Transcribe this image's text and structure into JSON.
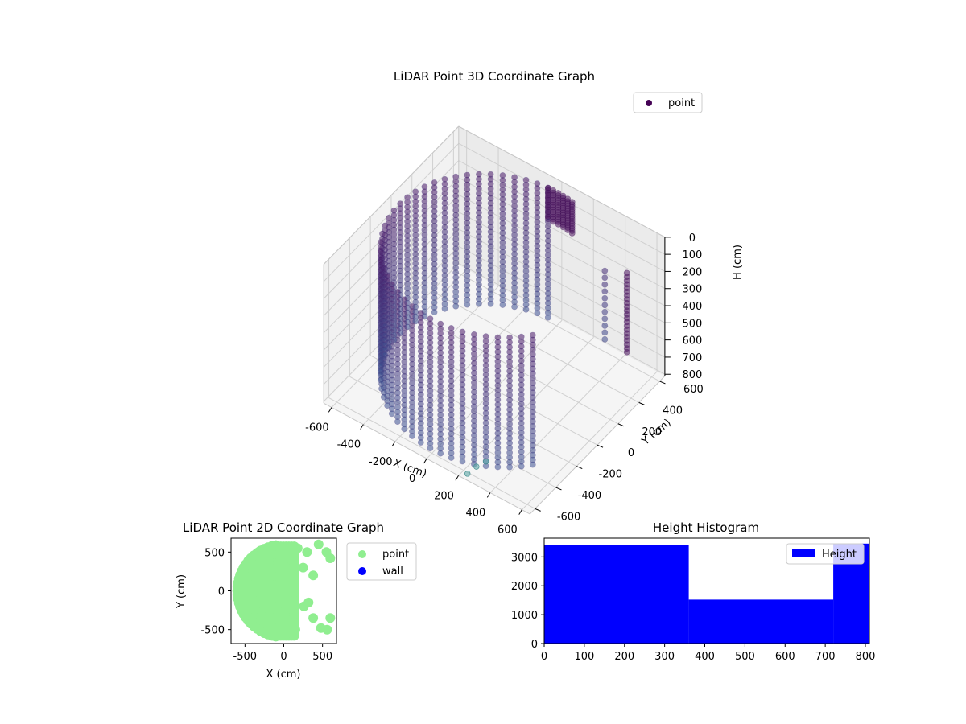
{
  "chart_data": [
    {
      "type": "scatter3d",
      "title": "LiDAR Point 3D Coordinate Graph",
      "xlabel": "X (cm)",
      "ylabel": "Y (cm)",
      "zlabel": "H (cm)",
      "xticks": [
        -600,
        -400,
        -200,
        0,
        200,
        400,
        600
      ],
      "yticks": [
        -600,
        -400,
        -200,
        0,
        200,
        400,
        600
      ],
      "zticks": [
        0,
        100,
        200,
        300,
        400,
        500,
        600,
        700,
        800
      ],
      "xlim": [
        -650,
        650
      ],
      "ylim": [
        -650,
        650
      ],
      "zlim": [
        0,
        810
      ],
      "z_inverted": true,
      "legend": {
        "label": "point",
        "placement": "top-right"
      },
      "colormap": "viridis",
      "wall_radius": 600,
      "grid": true
    },
    {
      "type": "scatter",
      "title": "LiDAR Point 2D Coordinate Graph",
      "xlabel": "X (cm)",
      "ylabel": "Y (cm)",
      "xticks": [
        -500,
        0,
        500
      ],
      "yticks": [
        -500,
        0,
        500
      ],
      "xlim": [
        -680,
        680
      ],
      "ylim": [
        -680,
        680
      ],
      "series": [
        {
          "name": "point",
          "color": "#90ee90"
        },
        {
          "name": "wall",
          "color": "#0000ff"
        }
      ],
      "legend_placement": "outside-right",
      "wall_radius": 600
    },
    {
      "type": "bar",
      "title": "Height Histogram",
      "bins": [
        [
          0,
          360
        ],
        [
          360,
          720
        ],
        [
          720,
          810
        ]
      ],
      "values": [
        3400,
        1520,
        3460
      ],
      "xticks": [
        0,
        100,
        200,
        300,
        400,
        500,
        600,
        700,
        800
      ],
      "yticks": [
        0,
        1000,
        2000,
        3000
      ],
      "xlim": [
        0,
        810
      ],
      "ylim": [
        0,
        3650
      ],
      "legend": {
        "label": "Height",
        "placement": "top-right"
      },
      "color": "#0000ff"
    }
  ]
}
